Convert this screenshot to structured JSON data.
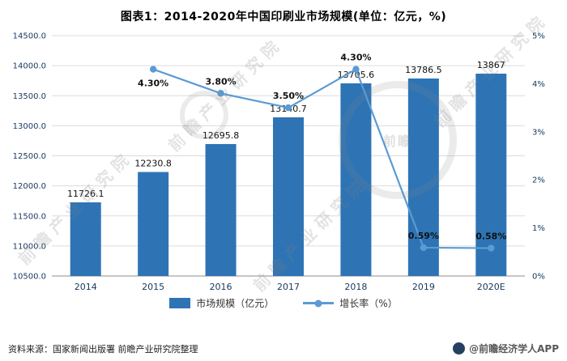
{
  "header": {
    "title": "图表1：2014-2020年中国印刷业市场规模(单位：亿元，%)"
  },
  "chart_data": {
    "type": "bar",
    "subtype": "combo-bar-line",
    "categories": [
      "2014",
      "2015",
      "2016",
      "2017",
      "2018",
      "2019",
      "2020E"
    ],
    "series": [
      {
        "name": "市场规模（亿元）",
        "type": "bar",
        "axis": "left",
        "color": "#2E74B5",
        "values": [
          11726.1,
          12230.8,
          12695.8,
          13140.7,
          13705.6,
          13786.5,
          13867
        ],
        "labels": [
          "11726.1",
          "12230.8",
          "12695.8",
          "13140.7",
          "13705.6",
          "13786.5",
          "13867"
        ]
      },
      {
        "name": "增长率（%）",
        "type": "line",
        "axis": "right",
        "color": "#5B9BD5",
        "values": [
          null,
          4.3,
          3.8,
          3.5,
          4.3,
          0.59,
          0.58
        ],
        "labels": [
          "",
          "4.30%",
          "3.80%",
          "3.50%",
          "4.30%",
          "0.59%",
          "0.58%"
        ]
      }
    ],
    "left_axis": {
      "min": 10500,
      "max": 14500,
      "step": 500,
      "tick_labels": [
        "10500.0",
        "11000.0",
        "11500.0",
        "12000.0",
        "12500.0",
        "13000.0",
        "13500.0",
        "14000.0",
        "14500.0"
      ]
    },
    "right_axis": {
      "min": 0,
      "max": 5,
      "step": 1,
      "tick_labels": [
        "0%",
        "1%",
        "2%",
        "3%",
        "4%",
        "5%"
      ]
    },
    "grid": true,
    "legend_position": "bottom"
  },
  "watermark": {
    "text": "前瞻产业研究院",
    "logo_text": "前瞻"
  },
  "footer": {
    "source": "资料来源：国家新闻出版署 前瞻产业研究院整理",
    "brand": "@前瞻经济学人APP"
  }
}
